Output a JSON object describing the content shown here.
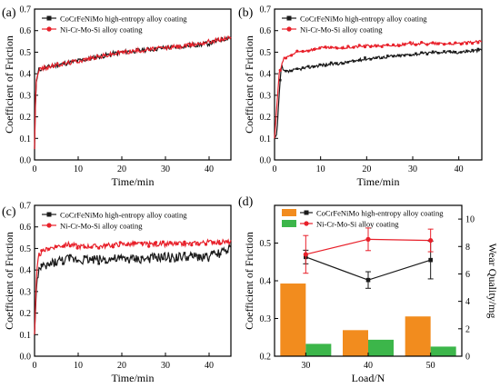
{
  "colors": {
    "series_a": "#1a1a1a",
    "series_b": "#e8202a",
    "bar_a": "#f28c1e",
    "bar_b": "#3cb64a"
  },
  "chart_data": [
    {
      "type": "line",
      "panel": "(a)",
      "xlabel": "Time/min",
      "ylabel": "Coefficient of Friction",
      "xlim": [
        0,
        45
      ],
      "ylim": [
        0,
        0.7
      ],
      "xticks": [
        "0",
        "10",
        "20",
        "30",
        "40"
      ],
      "yticks": [
        "0.0",
        "0.1",
        "0.2",
        "0.3",
        "0.4",
        "0.5",
        "0.6",
        "0.7"
      ],
      "legend": [
        "CoCrFeNiMo high-entropy alloy coating",
        "Ni-Cr-Mo-Si alloy coating"
      ],
      "series": [
        {
          "name": "CoCrFeNiMo high-entropy alloy coating",
          "x": [
            0,
            0.3,
            1,
            5,
            10,
            15,
            20,
            25,
            30,
            35,
            40,
            43,
            45
          ],
          "y": [
            0.05,
            0.35,
            0.42,
            0.44,
            0.46,
            0.48,
            0.5,
            0.51,
            0.52,
            0.53,
            0.54,
            0.56,
            0.57
          ]
        },
        {
          "name": "Ni-Cr-Mo-Si alloy coating",
          "x": [
            0,
            0.3,
            1,
            5,
            10,
            15,
            20,
            25,
            30,
            35,
            40,
            43,
            45
          ],
          "y": [
            0.05,
            0.36,
            0.42,
            0.44,
            0.46,
            0.48,
            0.5,
            0.51,
            0.52,
            0.53,
            0.55,
            0.56,
            0.57
          ]
        }
      ]
    },
    {
      "type": "line",
      "panel": "(b)",
      "xlabel": "Time/min",
      "ylabel": "Coefficient of Friction",
      "xlim": [
        0,
        45
      ],
      "ylim": [
        0,
        0.7
      ],
      "xticks": [
        "0",
        "10",
        "20",
        "30",
        "40"
      ],
      "yticks": [
        "0.0",
        "0.1",
        "0.2",
        "0.3",
        "0.4",
        "0.5",
        "0.6",
        "0.7"
      ],
      "legend": [
        "CoCrFeNiMo high-entropy alloy coating",
        "Ni-Cr-Mo-Si alloy coating"
      ],
      "series": [
        {
          "name": "CoCrFeNiMo high-entropy alloy coating",
          "x": [
            0,
            0.5,
            1,
            1.5,
            2,
            3,
            5,
            10,
            15,
            20,
            25,
            30,
            35,
            40,
            45
          ],
          "y": [
            0.1,
            0.12,
            0.3,
            0.44,
            0.41,
            0.41,
            0.42,
            0.44,
            0.45,
            0.47,
            0.48,
            0.49,
            0.5,
            0.5,
            0.51
          ]
        },
        {
          "name": "Ni-Cr-Mo-Si alloy coating",
          "x": [
            0,
            0.5,
            1,
            2,
            3,
            5,
            10,
            15,
            20,
            25,
            30,
            35,
            40,
            45
          ],
          "y": [
            0.1,
            0.25,
            0.4,
            0.47,
            0.48,
            0.5,
            0.52,
            0.52,
            0.53,
            0.53,
            0.54,
            0.54,
            0.54,
            0.55
          ]
        }
      ]
    },
    {
      "type": "line",
      "panel": "(c)",
      "xlabel": "Time/min",
      "ylabel": "Coefficient of Friction",
      "xlim": [
        0,
        45
      ],
      "ylim": [
        0,
        0.7
      ],
      "xticks": [
        "0",
        "10",
        "20",
        "30",
        "40"
      ],
      "yticks": [
        "0.0",
        "0.1",
        "0.2",
        "0.3",
        "0.4",
        "0.5",
        "0.6",
        "0.7"
      ],
      "legend": [
        "CoCrFeNiMo high-entropy alloy coating",
        "Ni-Cr-Mo-Si alloy coating"
      ],
      "series": [
        {
          "name": "CoCrFeNiMo high-entropy alloy coating",
          "x": [
            0,
            0.5,
            1,
            3,
            5,
            8,
            10,
            15,
            20,
            25,
            30,
            35,
            40,
            45
          ],
          "y": [
            0.1,
            0.35,
            0.4,
            0.42,
            0.44,
            0.45,
            0.45,
            0.45,
            0.45,
            0.45,
            0.46,
            0.46,
            0.46,
            0.5
          ]
        },
        {
          "name": "Ni-Cr-Mo-Si alloy coating",
          "x": [
            0,
            0.5,
            1,
            3,
            5,
            8,
            10,
            15,
            20,
            25,
            30,
            35,
            40,
            45
          ],
          "y": [
            0.1,
            0.4,
            0.47,
            0.5,
            0.51,
            0.52,
            0.51,
            0.51,
            0.52,
            0.52,
            0.52,
            0.52,
            0.53,
            0.53
          ]
        }
      ]
    },
    {
      "type": "bar",
      "panel": "(d)",
      "xlabel": "Load/N",
      "ylabel": "Coefficient of Friction",
      "y2label": "Wear Quality/mg",
      "categories": [
        "30",
        "40",
        "50"
      ],
      "ylim": [
        0.2,
        0.6
      ],
      "y2lim": [
        0,
        11
      ],
      "yticks": [
        "0.2",
        "0.3",
        "0.4",
        "0.5"
      ],
      "y2ticks": [
        "0",
        "2",
        "4",
        "6",
        "8",
        "10"
      ],
      "legend": [
        "CoCrFeNiMo high-entropy alloy coating",
        "Ni-Cr-Mo-Si alloy coating"
      ],
      "series": [
        {
          "name": "CoCrFeNiMo high-entropy alloy coating",
          "kind": "bar",
          "axis": "right",
          "values": [
            5.3,
            1.9,
            2.9
          ]
        },
        {
          "name": "Ni-Cr-Mo-Si alloy coating",
          "kind": "bar",
          "axis": "right",
          "values": [
            0.9,
            1.2,
            0.7
          ]
        },
        {
          "name": "CoCrFeNiMo high-entropy alloy coating",
          "kind": "line",
          "axis": "left",
          "values": [
            0.463,
            0.402,
            0.455
          ],
          "error": [
            0.018,
            0.022,
            0.05
          ]
        },
        {
          "name": "Ni-Cr-Mo-Si alloy coating",
          "kind": "line",
          "axis": "left",
          "values": [
            0.47,
            0.51,
            0.507
          ],
          "error": [
            0.05,
            0.03,
            0.03
          ]
        }
      ]
    }
  ]
}
